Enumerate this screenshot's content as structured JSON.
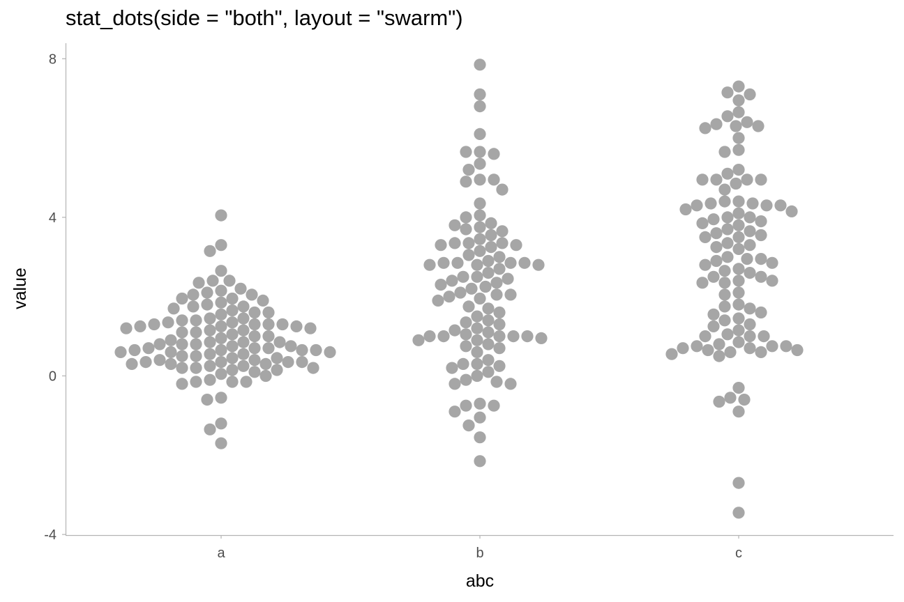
{
  "chart_data": {
    "type": "scatter",
    "subtype": "dotplot-swarm",
    "title": "stat_dots(side = \"both\", layout = \"swarm\")",
    "xlabel": "abc",
    "ylabel": "value",
    "categories": [
      "a",
      "b",
      "c"
    ],
    "ylim": [
      -4,
      8.5
    ],
    "yticks": [
      -4,
      0,
      4,
      8
    ],
    "grid": false,
    "legend": "none",
    "dot_color": "#a6a6a6",
    "series": [
      {
        "category": "a",
        "values": [
          4.05,
          3.3,
          3.15,
          2.65,
          2.4,
          2.4,
          2.35,
          2.2,
          2.15,
          2.1,
          2.05,
          2.05,
          1.95,
          1.95,
          1.9,
          1.85,
          1.8,
          1.75,
          1.75,
          1.7,
          1.65,
          1.6,
          1.6,
          1.55,
          1.45,
          1.45,
          1.4,
          1.4,
          1.35,
          1.35,
          1.3,
          1.3,
          1.3,
          1.3,
          1.25,
          1.25,
          1.25,
          1.2,
          1.2,
          1.15,
          1.15,
          1.1,
          1.1,
          1.05,
          1.0,
          1.0,
          0.95,
          0.9,
          0.85,
          0.85,
          0.85,
          0.8,
          0.8,
          0.8,
          0.75,
          0.75,
          0.7,
          0.7,
          0.7,
          0.65,
          0.65,
          0.65,
          0.65,
          0.6,
          0.6,
          0.6,
          0.55,
          0.55,
          0.5,
          0.5,
          0.45,
          0.45,
          0.4,
          0.4,
          0.35,
          0.35,
          0.35,
          0.35,
          0.3,
          0.3,
          0.3,
          0.25,
          0.25,
          0.2,
          0.2,
          0.2,
          0.15,
          0.15,
          0.1,
          0.05,
          0.0,
          -0.1,
          -0.15,
          -0.15,
          -0.15,
          -0.2,
          -0.55,
          -0.6,
          -1.2,
          -1.35,
          -1.7
        ],
        "approx": true
      },
      {
        "category": "b",
        "values": [
          7.85,
          7.1,
          6.8,
          6.1,
          5.65,
          5.65,
          5.6,
          5.35,
          5.2,
          4.95,
          4.95,
          4.9,
          4.7,
          4.35,
          4.05,
          4.0,
          3.85,
          3.8,
          3.75,
          3.7,
          3.65,
          3.55,
          3.45,
          3.35,
          3.35,
          3.35,
          3.3,
          3.3,
          3.25,
          3.15,
          3.05,
          3.0,
          2.9,
          2.85,
          2.85,
          2.85,
          2.85,
          2.8,
          2.8,
          2.8,
          2.7,
          2.6,
          2.5,
          2.5,
          2.45,
          2.4,
          2.35,
          2.3,
          2.25,
          2.2,
          2.1,
          2.05,
          2.05,
          2.0,
          1.95,
          1.9,
          1.75,
          1.7,
          1.6,
          1.5,
          1.4,
          1.35,
          1.3,
          1.2,
          1.15,
          1.1,
          1.05,
          1.0,
          1.0,
          1.0,
          1.0,
          1.0,
          0.95,
          0.9,
          0.9,
          0.8,
          0.75,
          0.7,
          0.6,
          0.4,
          0.3,
          0.3,
          0.25,
          0.2,
          0.1,
          0.0,
          -0.1,
          -0.15,
          -0.2,
          -0.2,
          -0.7,
          -0.75,
          -0.75,
          -0.9,
          -1.05,
          -1.25,
          -1.55,
          -2.15
        ],
        "approx": true
      },
      {
        "category": "c",
        "values": [
          7.3,
          7.15,
          7.1,
          6.95,
          6.65,
          6.55,
          6.4,
          6.35,
          6.3,
          6.3,
          6.25,
          6.0,
          5.7,
          5.65,
          5.2,
          5.1,
          4.95,
          4.95,
          4.95,
          4.95,
          4.85,
          4.7,
          4.4,
          4.4,
          4.35,
          4.35,
          4.3,
          4.3,
          4.3,
          4.2,
          4.15,
          4.1,
          4.0,
          4.0,
          3.95,
          3.9,
          3.85,
          3.8,
          3.7,
          3.65,
          3.6,
          3.55,
          3.5,
          3.5,
          3.35,
          3.3,
          3.25,
          3.2,
          3.0,
          2.95,
          2.95,
          2.9,
          2.85,
          2.8,
          2.7,
          2.65,
          2.6,
          2.5,
          2.5,
          2.4,
          2.4,
          2.35,
          2.35,
          2.1,
          2.05,
          1.8,
          1.75,
          1.7,
          1.6,
          1.55,
          1.45,
          1.4,
          1.3,
          1.25,
          1.15,
          1.05,
          1.0,
          1.0,
          1.0,
          0.85,
          0.8,
          0.75,
          0.75,
          0.75,
          0.7,
          0.7,
          0.65,
          0.65,
          0.6,
          0.6,
          0.55,
          0.5,
          -0.3,
          -0.55,
          -0.6,
          -0.65,
          -0.9,
          -2.7,
          -3.45
        ],
        "approx": true
      }
    ]
  }
}
